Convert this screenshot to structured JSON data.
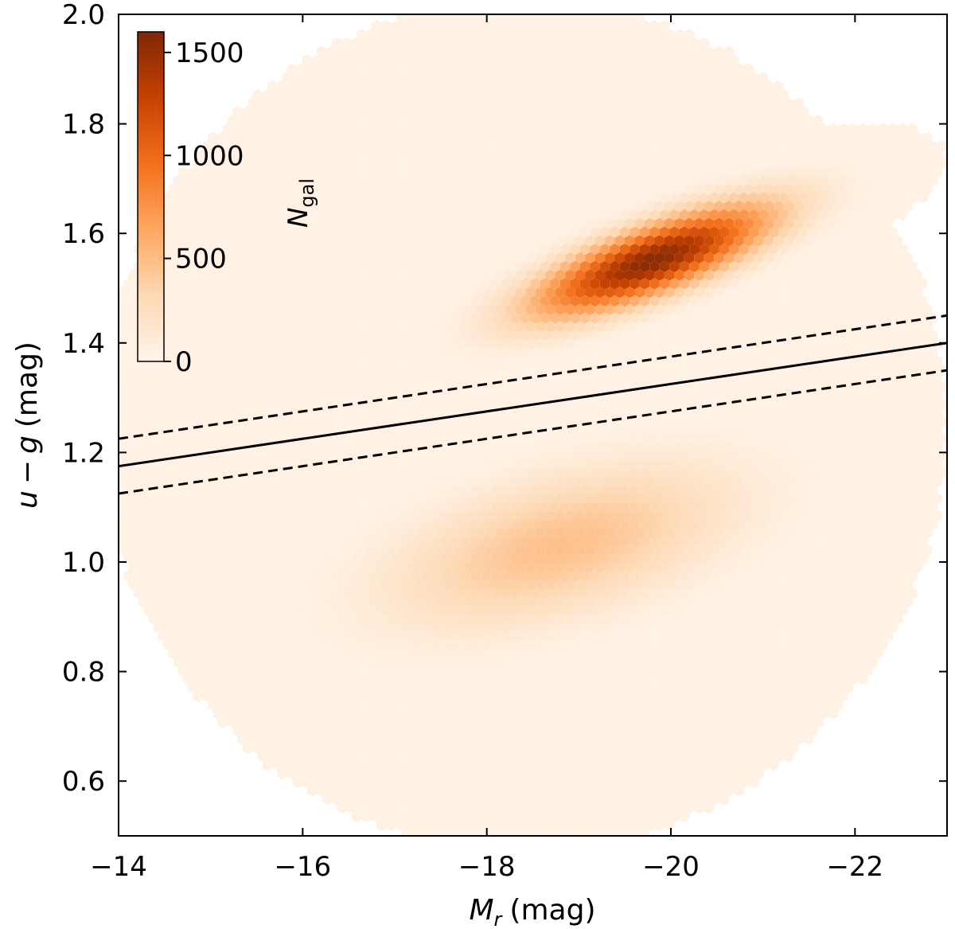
{
  "chart_data": {
    "type": "heatmap",
    "subtype": "hexbin",
    "title": "",
    "xlabel": {
      "var": "M",
      "sub": "r",
      "unit": "(mag)"
    },
    "ylabel": {
      "var_a": "u",
      "op": "−",
      "var_b": "g",
      "unit": "(mag)"
    },
    "xlim": [
      -14,
      -23
    ],
    "ylim": [
      0.5,
      2.0
    ],
    "x_inverted": true,
    "xticks": [
      -14,
      -16,
      -18,
      -20,
      -22
    ],
    "xtick_labels": [
      "−14",
      "−16",
      "−18",
      "−20",
      "−22"
    ],
    "yticks": [
      0.6,
      0.8,
      1.0,
      1.2,
      1.4,
      1.6,
      1.8,
      2.0
    ],
    "ytick_labels": [
      "0.6",
      "0.8",
      "1.0",
      "1.2",
      "1.4",
      "1.6",
      "1.8",
      "2.0"
    ],
    "grid": false,
    "colormap": "Oranges",
    "colorbar": {
      "label_var": "N",
      "label_sub": "gal",
      "range": [
        0,
        1600
      ],
      "ticks": [
        0,
        500,
        1000,
        1500
      ],
      "tick_labels": [
        "0",
        "500",
        "1000",
        "1500"
      ],
      "placement": "upper-left inset"
    },
    "density_components": [
      {
        "name_hint": "red sequence",
        "center": [
          -19.8,
          1.55
        ],
        "sigma_mag": 0.9,
        "sigma_color": 0.045,
        "slope": -0.06,
        "peak": 1550
      },
      {
        "name_hint": "blue cloud",
        "center": [
          -18.8,
          1.03
        ],
        "sigma_mag": 1.3,
        "sigma_color": 0.09,
        "slope": -0.04,
        "peak": 480
      }
    ],
    "lines": [
      {
        "style": "solid",
        "x": [
          -14,
          -23
        ],
        "y": [
          1.175,
          1.4
        ]
      },
      {
        "style": "dashed",
        "x": [
          -14,
          -23
        ],
        "y": [
          1.225,
          1.45
        ]
      },
      {
        "style": "dashed",
        "x": [
          -14,
          -23
        ],
        "y": [
          1.125,
          1.35
        ]
      }
    ]
  }
}
